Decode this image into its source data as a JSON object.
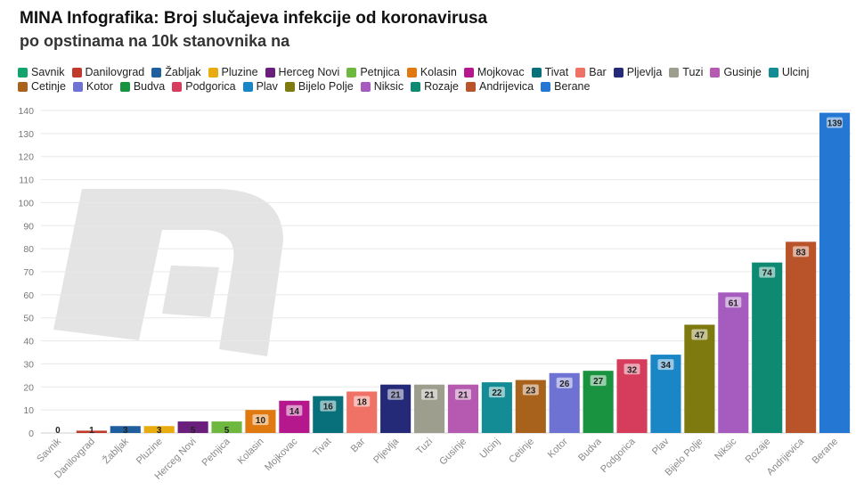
{
  "title": "MINA Infografika: Broj slučajeva infekcije od koronavirusa",
  "subtitle": "po opstinama na 10k stanovnika na",
  "chart_data": {
    "type": "bar",
    "title": "MINA Infografika: Broj slučajeva infekcije od koronavirusa",
    "subtitle": "po opstinama na 10k stanovnika na",
    "categories": [
      "Savnik",
      "Danilovgrad",
      "Žabljak",
      "Pluzine",
      "Herceg Novi",
      "Petnjica",
      "Kolasin",
      "Mojkovac",
      "Tivat",
      "Bar",
      "Pljevlja",
      "Tuzi",
      "Gusinje",
      "Ulcinj",
      "Cetinje",
      "Kotor",
      "Budva",
      "Podgorica",
      "Plav",
      "Bijelo Polje",
      "Niksic",
      "Rozaje",
      "Andrijevica",
      "Berane"
    ],
    "values": [
      0,
      1,
      3,
      3,
      5,
      5,
      10,
      14,
      16,
      18,
      21,
      21,
      21,
      22,
      23,
      26,
      27,
      32,
      34,
      47,
      61,
      74,
      83,
      139
    ],
    "colors": [
      "#12a46c",
      "#c0392b",
      "#1f5f9e",
      "#e8ac0e",
      "#6a1f7d",
      "#6fb83f",
      "#e07a10",
      "#b5178d",
      "#08707a",
      "#f07165",
      "#252a78",
      "#9e9e8e",
      "#b55ab0",
      "#138c95",
      "#a8621c",
      "#6e72d2",
      "#199340",
      "#d63c5c",
      "#1b86c6",
      "#7e7a10",
      "#a65cbf",
      "#0e8a72",
      "#b8532a",
      "#2478d4"
    ],
    "legend": [
      "Savnik",
      "Danilovgrad",
      "Žabljak",
      "Pluzine",
      "Herceg Novi",
      "Petnjica",
      "Kolasin",
      "Mojkovac",
      "Tivat",
      "Bar",
      "Pljevlja",
      "Tuzi",
      "Gusinje",
      "Ulcinj",
      "Cetinje",
      "Kotor",
      "Budva",
      "Podgorica",
      "Plav",
      "Bijelo Polje",
      "Niksic",
      "Rozaje",
      "Andrijevica",
      "Berane"
    ],
    "legend_position": "top",
    "ylim": [
      0,
      140
    ],
    "yticks": [
      0,
      10,
      20,
      30,
      40,
      50,
      60,
      70,
      80,
      90,
      100,
      110,
      120,
      130,
      140
    ],
    "grid": true,
    "xlabel": "",
    "ylabel": ""
  },
  "watermark": {
    "name": "mina-logo-watermark",
    "text": "m",
    "color": "#e4e4e4"
  }
}
